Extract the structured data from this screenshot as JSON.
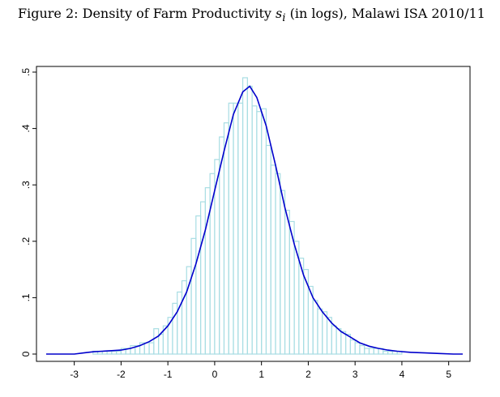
{
  "caption": {
    "prefix": "Figure 2: Density of Farm Productivity ",
    "symbol": "s",
    "subscript": "i",
    "suffix": " (in logs), Malawi ISA 2010/11"
  },
  "colors": {
    "bars": "#a8dde3",
    "density_line": "#0000cc",
    "axis": "#000000"
  },
  "chart_data": {
    "type": "bar",
    "title": "",
    "xlabel": "",
    "ylabel": "",
    "xlim": [
      -3.6,
      5.3
    ],
    "ylim": [
      0,
      0.5
    ],
    "xticks": [
      -3,
      -2,
      -1,
      0,
      1,
      2,
      3,
      4,
      5
    ],
    "xtick_labels": [
      "-3",
      "-2",
      "-1",
      "0",
      "1",
      "2",
      "3",
      "4",
      "5"
    ],
    "yticks": [
      0,
      0.1,
      0.2,
      0.3,
      0.4,
      0.5
    ],
    "ytick_labels": [
      "0",
      ".1",
      ".2",
      ".3",
      ".4",
      ".5"
    ],
    "grid": false,
    "histogram": {
      "bin_width": 0.1,
      "bin_start": [
        -2.6,
        -2.5,
        -2.4,
        -2.3,
        -2.2,
        -2.1,
        -2.0,
        -1.9,
        -1.8,
        -1.7,
        -1.6,
        -1.5,
        -1.4,
        -1.3,
        -1.2,
        -1.1,
        -1.0,
        -0.9,
        -0.8,
        -0.7,
        -0.6,
        -0.5,
        -0.4,
        -0.3,
        -0.2,
        -0.1,
        0.0,
        0.1,
        0.2,
        0.3,
        0.4,
        0.5,
        0.6,
        0.7,
        0.8,
        0.9,
        1.0,
        1.1,
        1.2,
        1.3,
        1.4,
        1.5,
        1.6,
        1.7,
        1.8,
        1.9,
        2.0,
        2.1,
        2.2,
        2.3,
        2.4,
        2.5,
        2.6,
        2.7,
        2.8,
        2.9,
        3.0,
        3.1,
        3.2,
        3.3,
        3.4,
        3.5,
        3.6,
        3.7,
        3.8,
        3.9
      ],
      "density": [
        0.005,
        0.005,
        0.005,
        0.005,
        0.005,
        0.005,
        0.01,
        0.01,
        0.015,
        0.015,
        0.02,
        0.02,
        0.02,
        0.045,
        0.035,
        0.05,
        0.065,
        0.09,
        0.11,
        0.13,
        0.155,
        0.205,
        0.245,
        0.27,
        0.295,
        0.32,
        0.345,
        0.385,
        0.41,
        0.445,
        0.445,
        0.445,
        0.49,
        0.475,
        0.44,
        0.43,
        0.435,
        0.37,
        0.335,
        0.32,
        0.29,
        0.255,
        0.235,
        0.2,
        0.17,
        0.15,
        0.12,
        0.095,
        0.08,
        0.075,
        0.065,
        0.05,
        0.045,
        0.04,
        0.035,
        0.025,
        0.02,
        0.015,
        0.01,
        0.01,
        0.01,
        0.01,
        0.005,
        0.005,
        0.005,
        0.005
      ]
    },
    "series": [
      {
        "type": "line",
        "x": [
          -3.6,
          -3.2,
          -3.0,
          -2.8,
          -2.6,
          -2.4,
          -2.2,
          -2.0,
          -1.8,
          -1.6,
          -1.4,
          -1.2,
          -1.0,
          -0.8,
          -0.6,
          -0.4,
          -0.2,
          0.0,
          0.2,
          0.4,
          0.6,
          0.75,
          0.9,
          1.1,
          1.3,
          1.5,
          1.7,
          1.9,
          2.1,
          2.3,
          2.5,
          2.7,
          2.9,
          3.1,
          3.3,
          3.5,
          3.7,
          3.9,
          4.2,
          4.5,
          4.8,
          5.1,
          5.3
        ],
        "y": [
          0.0,
          0.0,
          0.0,
          0.002,
          0.004,
          0.005,
          0.006,
          0.007,
          0.01,
          0.015,
          0.022,
          0.032,
          0.05,
          0.075,
          0.11,
          0.16,
          0.22,
          0.29,
          0.36,
          0.425,
          0.465,
          0.475,
          0.455,
          0.405,
          0.335,
          0.26,
          0.195,
          0.14,
          0.1,
          0.075,
          0.055,
          0.04,
          0.03,
          0.02,
          0.014,
          0.01,
          0.007,
          0.005,
          0.003,
          0.002,
          0.001,
          0.0,
          0.0
        ]
      }
    ]
  }
}
